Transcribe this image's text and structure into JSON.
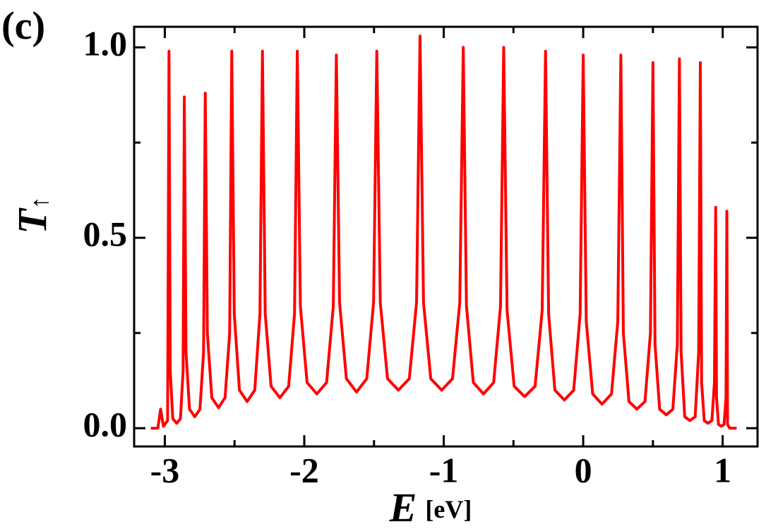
{
  "chart_data": {
    "type": "line",
    "panel_label": "(c)",
    "xlabel": "E",
    "xlabel_unit": "[eV]",
    "ylabel": "T",
    "ylabel_subscript": "↑",
    "xlim": [
      -3.22,
      1.25
    ],
    "ylim": [
      -0.048,
      1.054
    ],
    "xticks": [
      -3,
      -2,
      -1,
      0,
      1
    ],
    "xminorticks": [
      -2.5,
      -1.5,
      -0.5,
      0.5
    ],
    "yticks": [
      {
        "value": 0,
        "label": "0.0"
      },
      {
        "value": 0.5,
        "label": "0.5"
      },
      {
        "value": 1,
        "label": "1.0"
      }
    ],
    "yminorticks": [
      0.25,
      0.75
    ],
    "series": [
      {
        "color": "#ff0000",
        "x": [
          -3.1,
          -3.05,
          -3.03,
          -3.01,
          -2.98,
          -2.97,
          -2.961,
          -2.943,
          -2.915,
          -2.888,
          -2.869,
          -2.86,
          -2.848,
          -2.823,
          -2.785,
          -2.748,
          -2.722,
          -2.71,
          -2.695,
          -2.663,
          -2.615,
          -2.568,
          -2.535,
          -2.52,
          -2.502,
          -2.465,
          -2.41,
          -2.355,
          -2.318,
          -2.3,
          -2.28,
          -2.238,
          -2.175,
          -2.112,
          -2.07,
          -2.05,
          -2.028,
          -1.98,
          -1.91,
          -1.84,
          -1.792,
          -1.77,
          -1.747,
          -1.698,
          -1.625,
          -1.552,
          -1.503,
          -1.48,
          -1.455,
          -1.403,
          -1.325,
          -1.247,
          -1.195,
          -1.17,
          -1.145,
          -1.093,
          -1.015,
          -0.937,
          -0.885,
          -0.86,
          -0.837,
          -0.788,
          -0.715,
          -0.642,
          -0.593,
          -0.57,
          -0.546,
          -0.495,
          -0.42,
          -0.345,
          -0.294,
          -0.27,
          -0.248,
          -0.203,
          -0.135,
          -0.068,
          -0.022,
          0.0,
          0.022,
          0.068,
          0.135,
          0.203,
          0.248,
          0.27,
          0.288,
          0.328,
          0.385,
          0.443,
          0.482,
          0.5,
          0.515,
          0.548,
          0.595,
          0.643,
          0.675,
          0.69,
          0.702,
          0.728,
          0.765,
          0.803,
          0.828,
          0.84,
          0.849,
          0.868,
          0.895,
          0.923,
          0.941,
          0.95,
          0.956,
          0.97,
          0.99,
          1.01,
          1.024,
          1.03,
          1.035,
          1.05,
          1.1
        ],
        "values": [
          0,
          0,
          0.05,
          0.005,
          0.02,
          0.99,
          0.15,
          0.025,
          0.013,
          0.025,
          0.15,
          0.87,
          0.2,
          0.05,
          0.03,
          0.05,
          0.2,
          0.88,
          0.25,
          0.08,
          0.054,
          0.08,
          0.25,
          0.99,
          0.3,
          0.1,
          0.07,
          0.1,
          0.3,
          0.99,
          0.3,
          0.11,
          0.08,
          0.11,
          0.3,
          0.99,
          0.32,
          0.12,
          0.09,
          0.12,
          0.32,
          0.98,
          0.33,
          0.13,
          0.095,
          0.13,
          0.33,
          0.99,
          0.33,
          0.13,
          0.1,
          0.13,
          0.33,
          1.03,
          0.33,
          0.13,
          0.1,
          0.13,
          0.33,
          1.0,
          0.32,
          0.12,
          0.09,
          0.12,
          0.32,
          1.0,
          0.31,
          0.11,
          0.083,
          0.11,
          0.31,
          0.99,
          0.3,
          0.1,
          0.074,
          0.1,
          0.3,
          0.98,
          0.28,
          0.09,
          0.063,
          0.09,
          0.28,
          0.98,
          0.25,
          0.07,
          0.05,
          0.07,
          0.25,
          0.96,
          0.22,
          0.05,
          0.035,
          0.05,
          0.22,
          0.97,
          0.2,
          0.03,
          0.02,
          0.03,
          0.2,
          0.96,
          0.12,
          0.02,
          0.013,
          0.02,
          0.12,
          0.58,
          0.08,
          0.01,
          0.005,
          0.01,
          0.08,
          0.57,
          0.01,
          0,
          0
        ]
      }
    ]
  }
}
